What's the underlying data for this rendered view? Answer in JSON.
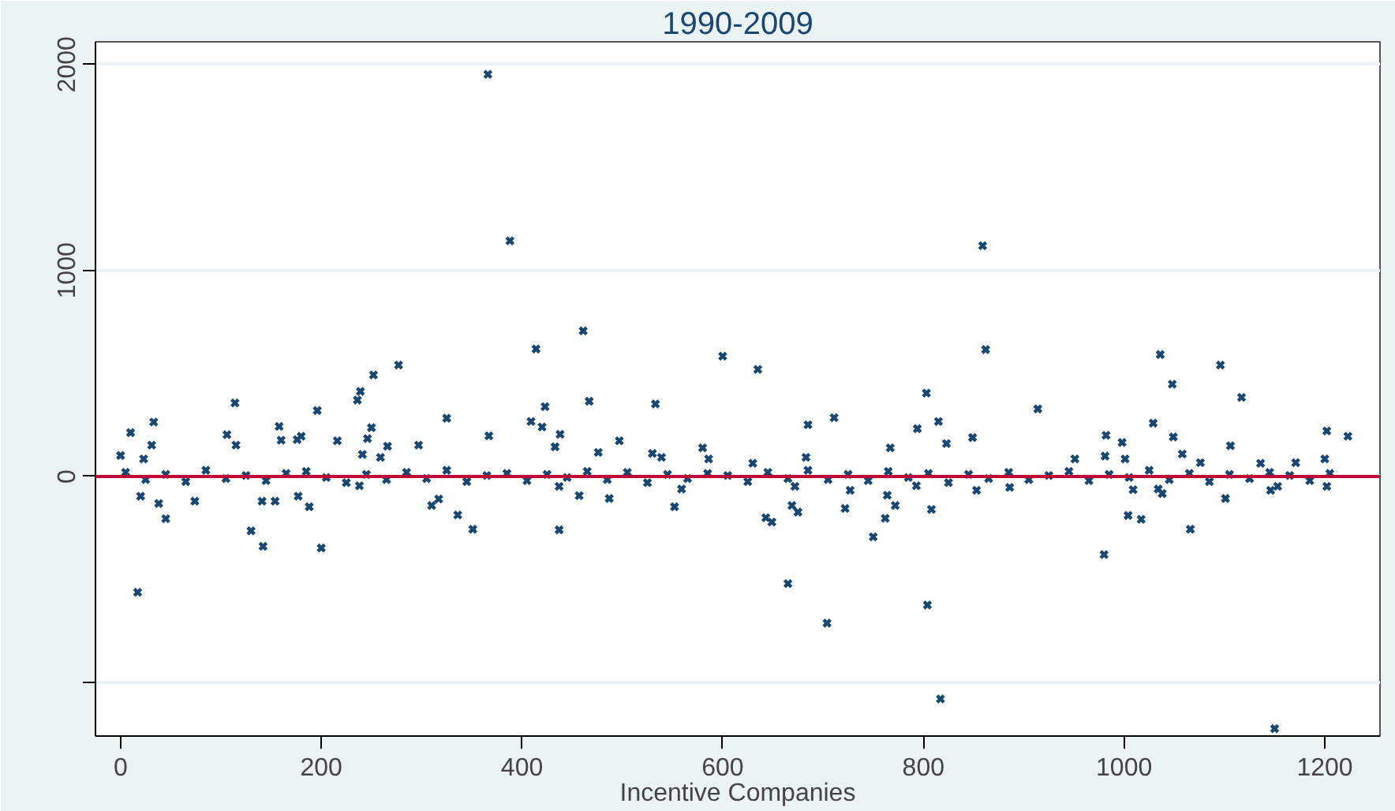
{
  "chart_data": {
    "type": "scatter",
    "title": "1990-2009",
    "xlabel": "Incentive Companies",
    "xlim": [
      -25,
      1255
    ],
    "ylim": [
      -1260,
      2110
    ],
    "xticks": [
      0,
      200,
      400,
      600,
      800,
      1000,
      1200
    ],
    "yticks": [
      {
        "value": -1000,
        "label": null
      },
      0,
      1000,
      2000
    ],
    "grid": "y",
    "marker": "cross",
    "ref_lines": [
      {
        "axis": "y",
        "value": 0,
        "color": "#c10534"
      }
    ],
    "series": [
      {
        "color": "#1a476f",
        "x": [
          366,
          388,
          859,
          862,
          817,
          1150,
          804,
          704,
          0,
          10,
          23,
          31,
          33,
          20,
          38,
          45,
          17,
          74,
          106,
          114,
          115,
          130,
          142,
          141,
          154,
          158,
          160,
          176,
          180,
          177,
          188,
          196,
          200,
          216,
          236,
          239,
          252,
          277,
          250,
          246,
          238,
          266,
          241,
          259,
          310,
          317,
          325,
          297,
          336,
          351,
          367,
          414,
          409,
          423,
          420,
          433,
          438,
          437,
          437,
          457,
          461,
          467,
          476,
          497,
          487,
          533,
          539,
          552,
          559,
          580,
          586,
          600,
          530,
          635,
          630,
          643,
          649,
          665,
          672,
          669,
          675,
          685,
          683,
          711,
          722,
          727,
          750,
          762,
          764,
          772,
          767,
          794,
          803,
          815,
          823,
          808,
          793,
          849,
          853,
          886,
          914,
          951,
          980,
          982,
          981,
          998,
          1001,
          1004,
          1009,
          1017,
          1029,
          1036,
          1048,
          1049,
          1058,
          1034,
          1038,
          1066,
          1076,
          1096,
          1101,
          1106,
          1117,
          1136,
          1146,
          1153,
          1171,
          1200,
          1202,
          1223,
          1202,
          5,
          25,
          45,
          65,
          85,
          105,
          125,
          145,
          165,
          185,
          205,
          225,
          245,
          265,
          285,
          305,
          325,
          345,
          365,
          385,
          405,
          425,
          445,
          465,
          485,
          505,
          525,
          545,
          565,
          585,
          605,
          625,
          645,
          665,
          685,
          705,
          725,
          745,
          765,
          785,
          805,
          825,
          845,
          865,
          885,
          905,
          925,
          945,
          965,
          985,
          1005,
          1025,
          1045,
          1065,
          1085,
          1105,
          1125,
          1145,
          1165,
          1185,
          1205
        ],
        "values": [
          1952,
          1144,
          1120,
          616,
          -1080,
          -1224,
          -624,
          -712,
          102,
          213,
          85,
          152,
          264,
          -96,
          -131,
          -205,
          -562,
          -120,
          203,
          357,
          152,
          -264,
          -339,
          -120,
          -120,
          243,
          176,
          179,
          195,
          -96,
          -147,
          320,
          -347,
          173,
          371,
          413,
          493,
          541,
          237,
          184,
          -45,
          147,
          107,
          93,
          -141,
          -109,
          283,
          152,
          -187,
          -256,
          197,
          619,
          267,
          339,
          240,
          144,
          205,
          -48,
          -259,
          -93,
          707,
          365,
          117,
          173,
          -107,
          352,
          93,
          -147,
          -61,
          139,
          85,
          584,
          112,
          520,
          64,
          -200,
          -221,
          -520,
          -48,
          -141,
          -173,
          251,
          93,
          285,
          -155,
          -67,
          -293,
          -203,
          -91,
          -141,
          139,
          232,
          405,
          267,
          160,
          -160,
          -45,
          189,
          -67,
          -53,
          328,
          85,
          -379,
          200,
          99,
          165,
          85,
          -189,
          -64,
          -208,
          259,
          592,
          448,
          192,
          109,
          -61,
          -83,
          -256,
          67,
          541,
          -107,
          149,
          384,
          64,
          -67,
          -48,
          67,
          85,
          221,
          195,
          -48,
          20,
          -15,
          10,
          -25,
          30,
          -10,
          5,
          -20,
          15,
          25,
          -5,
          -30,
          10,
          -15,
          20,
          -10,
          30,
          -25,
          5,
          15,
          -20,
          10,
          -5,
          25,
          -15,
          20,
          -30,
          10,
          -10,
          15,
          5,
          -25,
          20,
          -10,
          30,
          -15,
          10,
          -20,
          25,
          -5,
          15,
          -30,
          10,
          -10,
          20,
          -15,
          5,
          25,
          -20,
          10,
          -5,
          30,
          -15,
          15,
          -25,
          10,
          -10,
          20,
          5,
          -20,
          15
        ]
      }
    ]
  }
}
